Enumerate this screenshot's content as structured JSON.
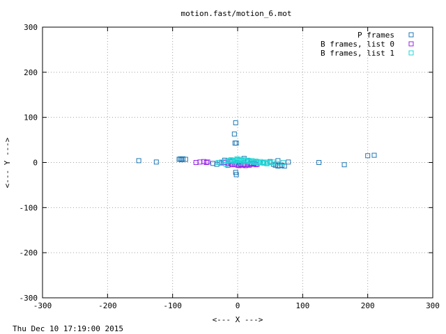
{
  "chart_data": {
    "type": "scatter",
    "title": "motion.fast/motion_6.mot",
    "xlabel": "<--- X --->",
    "ylabel": "<--- Y --->",
    "xlim": [
      -300,
      300
    ],
    "ylim": [
      -300,
      300
    ],
    "xticks": [
      -300,
      -200,
      -100,
      0,
      100,
      200,
      300
    ],
    "yticks": [
      -300,
      -200,
      -100,
      0,
      100,
      200,
      300
    ],
    "grid": true,
    "legend_position": "top-right",
    "footer": "Thu Dec 10 17:19:00 2015",
    "series": [
      {
        "name": "P frames",
        "color": "#1f77b4",
        "marker": "square-open",
        "points": [
          [
            -152,
            4
          ],
          [
            -125,
            1
          ],
          [
            -90,
            7
          ],
          [
            -88,
            8
          ],
          [
            -86,
            6
          ],
          [
            -84,
            8
          ],
          [
            -80,
            7
          ],
          [
            -3,
            88
          ],
          [
            -5,
            63
          ],
          [
            -4,
            43
          ],
          [
            -2,
            43
          ],
          [
            -3,
            -22
          ],
          [
            -2,
            -27
          ],
          [
            10,
            9
          ],
          [
            5,
            -4
          ],
          [
            25,
            -3
          ],
          [
            40,
            -1
          ],
          [
            50,
            2
          ],
          [
            55,
            -4
          ],
          [
            58,
            -6
          ],
          [
            62,
            4
          ],
          [
            62,
            -8
          ],
          [
            65,
            -7
          ],
          [
            68,
            -6
          ],
          [
            72,
            -8
          ],
          [
            78,
            1
          ],
          [
            125,
            0
          ],
          [
            164,
            -5
          ],
          [
            200,
            15
          ],
          [
            210,
            16
          ],
          [
            -38,
            -2
          ],
          [
            -32,
            -4
          ],
          [
            -20,
            5
          ],
          [
            -15,
            -6
          ],
          [
            -10,
            3
          ],
          [
            0,
            0
          ],
          [
            8,
            -5
          ],
          [
            15,
            4
          ],
          [
            20,
            -2
          ],
          [
            30,
            1
          ]
        ]
      },
      {
        "name": "B frames, list 0",
        "color": "#9b1fe8",
        "marker": "square-open",
        "points": [
          [
            -64,
            0
          ],
          [
            -58,
            1
          ],
          [
            -52,
            2
          ],
          [
            -48,
            0
          ],
          [
            -46,
            1
          ],
          [
            -28,
            0
          ],
          [
            -25,
            -1
          ],
          [
            -20,
            0
          ],
          [
            -15,
            -2
          ],
          [
            -12,
            1
          ],
          [
            -10,
            -3
          ],
          [
            -8,
            -5
          ],
          [
            -5,
            -4
          ],
          [
            -2,
            -3
          ],
          [
            0,
            -6
          ],
          [
            2,
            -7
          ],
          [
            5,
            -5
          ],
          [
            8,
            -6
          ],
          [
            10,
            -4
          ],
          [
            12,
            -7
          ],
          [
            15,
            -5
          ],
          [
            18,
            -6
          ],
          [
            20,
            -4
          ],
          [
            22,
            -3
          ],
          [
            25,
            -2
          ],
          [
            28,
            -5
          ],
          [
            30,
            -4
          ]
        ]
      },
      {
        "name": "B frames, list 1",
        "color": "#1fd6d6",
        "marker": "square-open",
        "points": [
          [
            -30,
            0
          ],
          [
            -25,
            1
          ],
          [
            -20,
            2
          ],
          [
            -15,
            3
          ],
          [
            -12,
            5
          ],
          [
            -10,
            6
          ],
          [
            -8,
            4
          ],
          [
            -5,
            2
          ],
          [
            -3,
            5
          ],
          [
            -1,
            8
          ],
          [
            0,
            6
          ],
          [
            2,
            4
          ],
          [
            4,
            7
          ],
          [
            6,
            5
          ],
          [
            8,
            3
          ],
          [
            10,
            6
          ],
          [
            12,
            4
          ],
          [
            14,
            2
          ],
          [
            16,
            5
          ],
          [
            18,
            3
          ],
          [
            20,
            1
          ],
          [
            22,
            4
          ],
          [
            24,
            2
          ],
          [
            26,
            0
          ],
          [
            28,
            3
          ],
          [
            30,
            1
          ],
          [
            32,
            -1
          ],
          [
            35,
            2
          ],
          [
            38,
            0
          ],
          [
            42,
            1
          ],
          [
            46,
            -1
          ],
          [
            50,
            0
          ],
          [
            55,
            1
          ],
          [
            60,
            -2
          ],
          [
            70,
            0
          ],
          [
            45,
            -3
          ],
          [
            -18,
            -4
          ],
          [
            -6,
            -2
          ],
          [
            5,
            -1
          ]
        ]
      }
    ]
  }
}
